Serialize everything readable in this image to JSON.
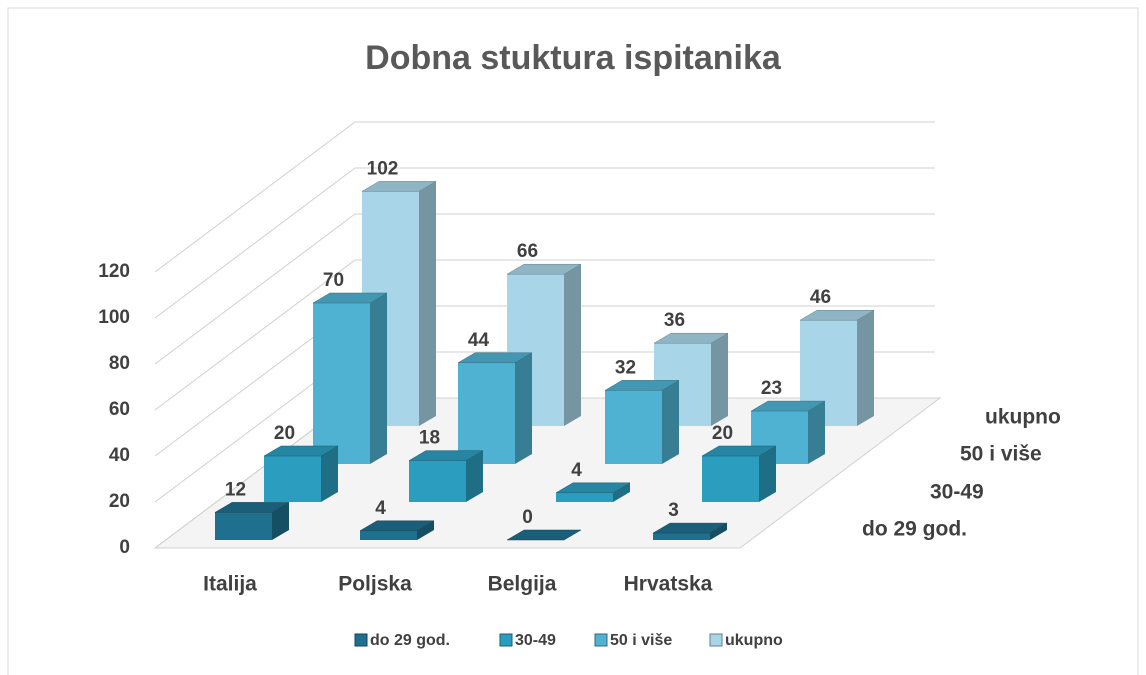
{
  "chart_data": {
    "type": "bar3d",
    "title": "Dobna stuktura ispitanika",
    "categories": [
      "Italija",
      "Poljska",
      "Belgija",
      "Hrvatska"
    ],
    "series": [
      {
        "name": "do 29 god.",
        "color": "#1f6f8e",
        "values": [
          12,
          4,
          0,
          3
        ]
      },
      {
        "name": "30-49",
        "color": "#2b9dbf",
        "values": [
          20,
          18,
          4,
          20
        ]
      },
      {
        "name": "50 i više",
        "color": "#4fb2d2",
        "values": [
          70,
          44,
          32,
          23
        ]
      },
      {
        "name": "ukupno",
        "color": "#a8d5e8",
        "values": [
          102,
          66,
          36,
          46
        ]
      }
    ],
    "ylim": [
      0,
      120
    ],
    "yticks": [
      0,
      20,
      40,
      60,
      80,
      100,
      120
    ],
    "grid": true,
    "legend": "bottom"
  }
}
